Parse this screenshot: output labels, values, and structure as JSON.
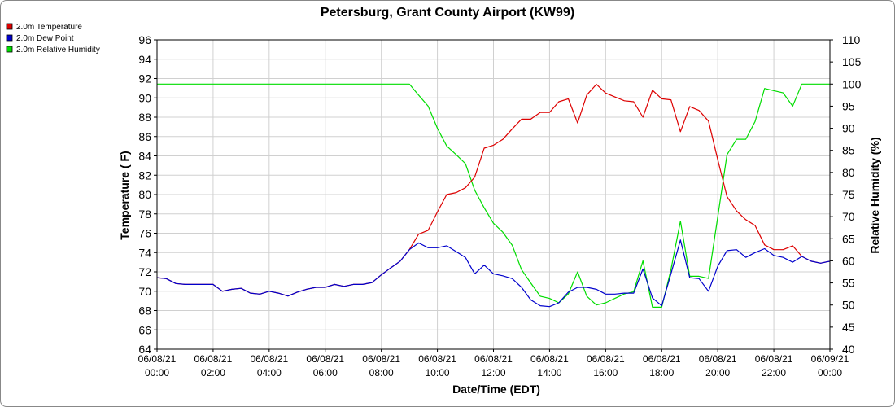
{
  "chart_data": {
    "type": "line",
    "title": "Petersburg, Grant County Airport (KW99)",
    "xlabel": "Date/Time (EDT)",
    "ylabel_left": "Temperature ( F)",
    "ylabel_right": "Relative Humidity (%)",
    "ylim_left": [
      64,
      96
    ],
    "ylim_right": [
      40,
      110
    ],
    "yticks_left": [
      64,
      66,
      68,
      70,
      72,
      74,
      76,
      78,
      80,
      82,
      84,
      86,
      88,
      90,
      92,
      94,
      96
    ],
    "yticks_right": [
      40,
      45,
      50,
      55,
      60,
      65,
      70,
      75,
      80,
      85,
      90,
      95,
      100,
      105,
      110
    ],
    "xlim_hours": [
      0,
      24
    ],
    "xticks": [
      {
        "date": "06/08/21",
        "time": "00:00",
        "h": 0
      },
      {
        "date": "06/08/21",
        "time": "02:00",
        "h": 2
      },
      {
        "date": "06/08/21",
        "time": "04:00",
        "h": 4
      },
      {
        "date": "06/08/21",
        "time": "06:00",
        "h": 6
      },
      {
        "date": "06/08/21",
        "time": "08:00",
        "h": 8
      },
      {
        "date": "06/08/21",
        "time": "10:00",
        "h": 10
      },
      {
        "date": "06/08/21",
        "time": "12:00",
        "h": 12
      },
      {
        "date": "06/08/21",
        "time": "14:00",
        "h": 14
      },
      {
        "date": "06/08/21",
        "time": "16:00",
        "h": 16
      },
      {
        "date": "06/08/21",
        "time": "18:00",
        "h": 18
      },
      {
        "date": "06/08/21",
        "time": "20:00",
        "h": 20
      },
      {
        "date": "06/08/21",
        "time": "22:00",
        "h": 22
      },
      {
        "date": "06/09/21",
        "time": "00:00",
        "h": 24
      }
    ],
    "grid": true,
    "legend_position": "top-left",
    "series": [
      {
        "name": "2.0m Temperature",
        "color": "#dd0000",
        "axis": "left",
        "points": [
          [
            0.0,
            71.4
          ],
          [
            0.33,
            71.3
          ],
          [
            0.67,
            70.8
          ],
          [
            1.0,
            70.7
          ],
          [
            1.33,
            70.7
          ],
          [
            1.67,
            70.7
          ],
          [
            2.0,
            70.7
          ],
          [
            2.33,
            70.0
          ],
          [
            2.67,
            70.2
          ],
          [
            3.0,
            70.3
          ],
          [
            3.33,
            69.8
          ],
          [
            3.67,
            69.7
          ],
          [
            4.0,
            70.0
          ],
          [
            4.33,
            69.8
          ],
          [
            4.67,
            69.5
          ],
          [
            5.0,
            69.9
          ],
          [
            5.33,
            70.2
          ],
          [
            5.67,
            70.4
          ],
          [
            6.0,
            70.4
          ],
          [
            6.33,
            70.7
          ],
          [
            6.67,
            70.5
          ],
          [
            7.0,
            70.7
          ],
          [
            7.33,
            70.7
          ],
          [
            7.67,
            70.9
          ],
          [
            8.0,
            71.7
          ],
          [
            8.33,
            72.4
          ],
          [
            8.67,
            73.1
          ],
          [
            9.0,
            74.3
          ],
          [
            9.33,
            75.9
          ],
          [
            9.67,
            76.3
          ],
          [
            10.0,
            78.2
          ],
          [
            10.33,
            80.0
          ],
          [
            10.67,
            80.2
          ],
          [
            11.0,
            80.7
          ],
          [
            11.33,
            81.8
          ],
          [
            11.67,
            84.8
          ],
          [
            12.0,
            85.1
          ],
          [
            12.33,
            85.7
          ],
          [
            12.67,
            86.8
          ],
          [
            13.0,
            87.8
          ],
          [
            13.33,
            87.8
          ],
          [
            13.67,
            88.5
          ],
          [
            14.0,
            88.5
          ],
          [
            14.33,
            89.6
          ],
          [
            14.67,
            89.9
          ],
          [
            15.0,
            87.4
          ],
          [
            15.33,
            90.3
          ],
          [
            15.67,
            91.4
          ],
          [
            16.0,
            90.5
          ],
          [
            16.33,
            90.1
          ],
          [
            16.67,
            89.7
          ],
          [
            17.0,
            89.6
          ],
          [
            17.33,
            88.0
          ],
          [
            17.67,
            90.8
          ],
          [
            18.0,
            89.9
          ],
          [
            18.33,
            89.8
          ],
          [
            18.67,
            86.5
          ],
          [
            19.0,
            89.1
          ],
          [
            19.33,
            88.7
          ],
          [
            19.67,
            87.6
          ],
          [
            20.0,
            83.6
          ],
          [
            20.33,
            79.8
          ],
          [
            20.67,
            78.3
          ],
          [
            21.0,
            77.4
          ],
          [
            21.33,
            76.8
          ],
          [
            21.67,
            74.8
          ],
          [
            22.0,
            74.3
          ],
          [
            22.33,
            74.3
          ],
          [
            22.67,
            74.7
          ],
          [
            23.0,
            73.6
          ],
          [
            23.33,
            73.1
          ],
          [
            23.67,
            72.9
          ],
          [
            24.0,
            73.1
          ]
        ]
      },
      {
        "name": "2.0m Dew Point",
        "color": "#0000cc",
        "axis": "left",
        "points": [
          [
            0.0,
            71.4
          ],
          [
            0.33,
            71.3
          ],
          [
            0.67,
            70.8
          ],
          [
            1.0,
            70.7
          ],
          [
            1.33,
            70.7
          ],
          [
            1.67,
            70.7
          ],
          [
            2.0,
            70.7
          ],
          [
            2.33,
            70.0
          ],
          [
            2.67,
            70.2
          ],
          [
            3.0,
            70.3
          ],
          [
            3.33,
            69.8
          ],
          [
            3.67,
            69.7
          ],
          [
            4.0,
            70.0
          ],
          [
            4.33,
            69.8
          ],
          [
            4.67,
            69.5
          ],
          [
            5.0,
            69.9
          ],
          [
            5.33,
            70.2
          ],
          [
            5.67,
            70.4
          ],
          [
            6.0,
            70.4
          ],
          [
            6.33,
            70.7
          ],
          [
            6.67,
            70.5
          ],
          [
            7.0,
            70.7
          ],
          [
            7.33,
            70.7
          ],
          [
            7.67,
            70.9
          ],
          [
            8.0,
            71.7
          ],
          [
            8.33,
            72.4
          ],
          [
            8.67,
            73.1
          ],
          [
            9.0,
            74.3
          ],
          [
            9.33,
            75.0
          ],
          [
            9.67,
            74.5
          ],
          [
            10.0,
            74.5
          ],
          [
            10.33,
            74.7
          ],
          [
            10.67,
            74.1
          ],
          [
            11.0,
            73.5
          ],
          [
            11.33,
            71.8
          ],
          [
            11.67,
            72.7
          ],
          [
            12.0,
            71.8
          ],
          [
            12.33,
            71.6
          ],
          [
            12.67,
            71.3
          ],
          [
            13.0,
            70.4
          ],
          [
            13.33,
            69.1
          ],
          [
            13.67,
            68.5
          ],
          [
            14.0,
            68.4
          ],
          [
            14.33,
            68.8
          ],
          [
            14.67,
            69.9
          ],
          [
            15.0,
            70.4
          ],
          [
            15.33,
            70.4
          ],
          [
            15.67,
            70.2
          ],
          [
            16.0,
            69.7
          ],
          [
            16.33,
            69.7
          ],
          [
            16.67,
            69.8
          ],
          [
            17.0,
            69.8
          ],
          [
            17.33,
            72.3
          ],
          [
            17.67,
            69.3
          ],
          [
            18.0,
            68.5
          ],
          [
            18.33,
            71.8
          ],
          [
            18.67,
            75.3
          ],
          [
            19.0,
            71.4
          ],
          [
            19.33,
            71.3
          ],
          [
            19.67,
            70.0
          ],
          [
            20.0,
            72.6
          ],
          [
            20.33,
            74.2
          ],
          [
            20.67,
            74.3
          ],
          [
            21.0,
            73.5
          ],
          [
            21.33,
            74.0
          ],
          [
            21.67,
            74.4
          ],
          [
            22.0,
            73.7
          ],
          [
            22.33,
            73.5
          ],
          [
            22.67,
            73.0
          ],
          [
            23.0,
            73.6
          ],
          [
            23.33,
            73.1
          ],
          [
            23.67,
            72.9
          ],
          [
            24.0,
            73.1
          ]
        ]
      },
      {
        "name": "2.0m Relative Humidity",
        "color": "#00dd00",
        "axis": "right",
        "points": [
          [
            0.0,
            100
          ],
          [
            1.0,
            100
          ],
          [
            2.0,
            100
          ],
          [
            3.0,
            100
          ],
          [
            4.0,
            100
          ],
          [
            5.0,
            100
          ],
          [
            6.0,
            100
          ],
          [
            7.0,
            100
          ],
          [
            8.0,
            100
          ],
          [
            9.0,
            100
          ],
          [
            9.33,
            97.5
          ],
          [
            9.67,
            95
          ],
          [
            10.0,
            90
          ],
          [
            10.33,
            86
          ],
          [
            10.67,
            84
          ],
          [
            11.0,
            82
          ],
          [
            11.33,
            76
          ],
          [
            11.67,
            72
          ],
          [
            12.0,
            68.5
          ],
          [
            12.33,
            66.5
          ],
          [
            12.67,
            63.5
          ],
          [
            13.0,
            58
          ],
          [
            13.33,
            55
          ],
          [
            13.67,
            52
          ],
          [
            14.0,
            51.5
          ],
          [
            14.33,
            50.5
          ],
          [
            14.67,
            52.5
          ],
          [
            15.0,
            57.5
          ],
          [
            15.33,
            52
          ],
          [
            15.67,
            50
          ],
          [
            16.0,
            50.5
          ],
          [
            16.33,
            51.5
          ],
          [
            16.67,
            52.5
          ],
          [
            17.0,
            53
          ],
          [
            17.33,
            60
          ],
          [
            17.67,
            49.5
          ],
          [
            18.0,
            49.5
          ],
          [
            18.33,
            58
          ],
          [
            18.67,
            69
          ],
          [
            19.0,
            56.5
          ],
          [
            19.33,
            56.5
          ],
          [
            19.67,
            56
          ],
          [
            20.0,
            70
          ],
          [
            20.33,
            84
          ],
          [
            20.67,
            87.5
          ],
          [
            21.0,
            87.5
          ],
          [
            21.33,
            91.5
          ],
          [
            21.67,
            99
          ],
          [
            22.0,
            98.5
          ],
          [
            22.33,
            98
          ],
          [
            22.67,
            95
          ],
          [
            23.0,
            100
          ],
          [
            23.33,
            100
          ],
          [
            23.67,
            100
          ],
          [
            24.0,
            100
          ]
        ]
      }
    ]
  }
}
